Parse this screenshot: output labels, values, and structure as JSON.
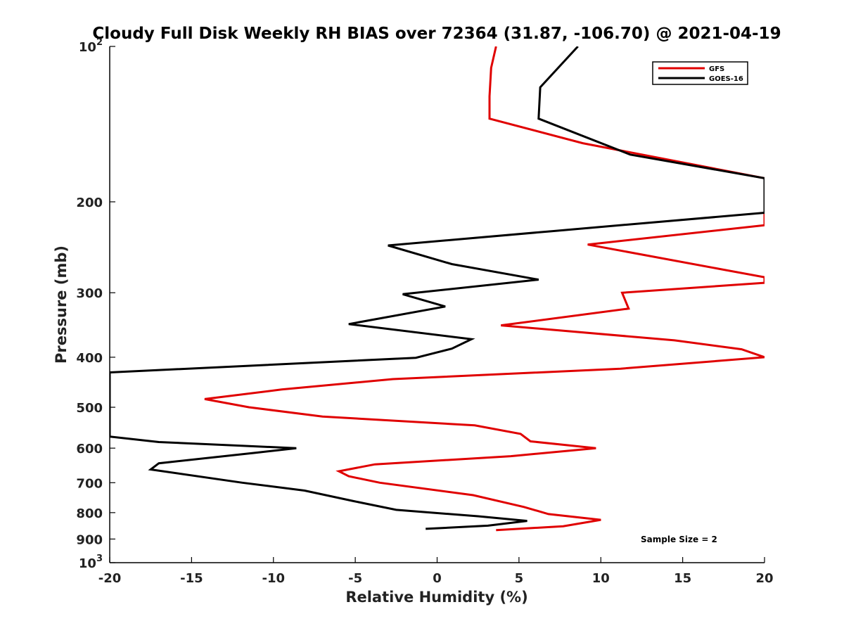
{
  "chart_data": {
    "type": "line",
    "title": "Cloudy Full Disk Weekly RH BIAS over 72364 (31.87, -106.70) @ 2021-04-19",
    "xlabel": "Relative Humidity (%)",
    "ylabel": "Pressure (mb)",
    "xlim": [
      -20,
      20
    ],
    "ylim": [
      100,
      1000
    ],
    "y_scale": "log",
    "y_reversed": true,
    "x_ticks": [
      "-20",
      "-15",
      "-10",
      "-5",
      "0",
      "5",
      "10",
      "15",
      "20"
    ],
    "y_ticks": [
      {
        "value": 100,
        "base": "10",
        "exp": "2"
      },
      {
        "value": 200,
        "label": "200"
      },
      {
        "value": 300,
        "label": "300"
      },
      {
        "value": 400,
        "label": "400"
      },
      {
        "value": 500,
        "label": "500"
      },
      {
        "value": 600,
        "label": "600"
      },
      {
        "value": 700,
        "label": "700"
      },
      {
        "value": 800,
        "label": "800"
      },
      {
        "value": 900,
        "label": "900"
      },
      {
        "value": 1000,
        "base": "10",
        "exp": "3"
      }
    ],
    "grid": false,
    "legend_position": "top-right",
    "series": [
      {
        "name": "GFS",
        "color": "#e00000",
        "points": [
          [
            3.6,
            100
          ],
          [
            3.3,
            110
          ],
          [
            3.2,
            125
          ],
          [
            3.2,
            138
          ],
          [
            8.9,
            154
          ],
          [
            20,
            180
          ],
          [
            20,
            222
          ],
          [
            9.2,
            242
          ],
          [
            20,
            280
          ],
          [
            20,
            287
          ],
          [
            11.3,
            300
          ],
          [
            11.7,
            322
          ],
          [
            3.9,
            347
          ],
          [
            14.5,
            371
          ],
          [
            18.6,
            386
          ],
          [
            20,
            400
          ],
          [
            11.2,
            421
          ],
          [
            -2.7,
            441
          ],
          [
            -9.5,
            462
          ],
          [
            -14.2,
            482
          ],
          [
            -11.5,
            500
          ],
          [
            -7.0,
            521
          ],
          [
            2.3,
            542
          ],
          [
            5.1,
            563
          ],
          [
            5.7,
            582
          ],
          [
            9.7,
            600
          ],
          [
            4.5,
            622
          ],
          [
            -3.8,
            645
          ],
          [
            -6.0,
            665
          ],
          [
            -5.4,
            680
          ],
          [
            -3.5,
            700
          ],
          [
            2.2,
            740
          ],
          [
            5.3,
            780
          ],
          [
            6.8,
            805
          ],
          [
            10.0,
            826
          ],
          [
            7.7,
            850
          ],
          [
            3.6,
            865
          ]
        ]
      },
      {
        "name": "GOES-16",
        "color": "#000000",
        "points": [
          [
            8.6,
            100
          ],
          [
            6.3,
            120
          ],
          [
            6.2,
            138
          ],
          [
            11.8,
            162
          ],
          [
            20,
            180
          ],
          [
            20,
            210
          ],
          [
            7.0,
            228
          ],
          [
            -3.0,
            243
          ],
          [
            0.9,
            264
          ],
          [
            6.2,
            283
          ],
          [
            -2.1,
            302
          ],
          [
            0.5,
            319
          ],
          [
            -5.4,
            345
          ],
          [
            2.1,
            369
          ],
          [
            0.9,
            385
          ],
          [
            -1.3,
            401
          ],
          [
            -20,
            428
          ],
          [
            -20,
            570
          ],
          [
            -17,
            584
          ],
          [
            -8.6,
            600
          ],
          [
            -11.0,
            612
          ],
          [
            -17.0,
            642
          ],
          [
            -17.5,
            660
          ],
          [
            -11.9,
            700
          ],
          [
            -8.1,
            725
          ],
          [
            -5.1,
            760
          ],
          [
            -2.5,
            790
          ],
          [
            2.5,
            813
          ],
          [
            5.5,
            830
          ],
          [
            3.1,
            848
          ],
          [
            -0.7,
            860
          ]
        ]
      }
    ],
    "annotation": "Sample Size = 2"
  }
}
